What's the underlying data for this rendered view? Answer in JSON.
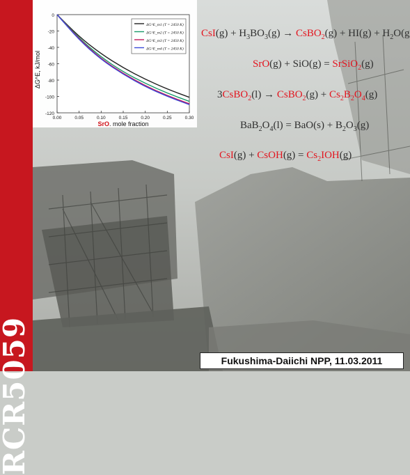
{
  "side_label": "RCR5059",
  "caption": "Fukushima-Daiichi NPP,  11.03.2011",
  "equations": [
    [
      {
        "t": "CsI",
        "c": "red"
      },
      {
        "t": "(g) + H"
      },
      {
        "t": "3",
        "sub": true
      },
      {
        "t": "BO"
      },
      {
        "t": "3",
        "sub": true
      },
      {
        "t": "(g) → "
      },
      {
        "t": "CsBO",
        "c": "red"
      },
      {
        "t": "2",
        "sub": true,
        "c": "red"
      },
      {
        "t": "(g) + HI(g) + H"
      },
      {
        "t": "2",
        "sub": true
      },
      {
        "t": "O(g)"
      }
    ],
    [
      {
        "t": "SrO",
        "c": "red"
      },
      {
        "t": "(g) + SiO(g) = "
      },
      {
        "t": "SrSiO",
        "c": "red"
      },
      {
        "t": "2",
        "sub": true,
        "c": "red"
      },
      {
        "t": "(g)"
      }
    ],
    [
      {
        "t": "3"
      },
      {
        "t": "CsBO",
        "c": "red"
      },
      {
        "t": "2",
        "sub": true,
        "c": "red"
      },
      {
        "t": "(l) → "
      },
      {
        "t": "CsBO",
        "c": "red"
      },
      {
        "t": "2",
        "sub": true,
        "c": "red"
      },
      {
        "t": "(g) + "
      },
      {
        "t": "Cs",
        "c": "red"
      },
      {
        "t": "2",
        "sub": true,
        "c": "red"
      },
      {
        "t": "B",
        "c": "red"
      },
      {
        "t": "2",
        "sub": true,
        "c": "red"
      },
      {
        "t": "O",
        "c": "red"
      },
      {
        "t": "4",
        "sub": true,
        "c": "red"
      },
      {
        "t": "(g)"
      }
    ],
    [
      {
        "t": "BaB"
      },
      {
        "t": "2",
        "sub": true
      },
      {
        "t": "O"
      },
      {
        "t": "4",
        "sub": true
      },
      {
        "t": "(l) = BaO(s) + B"
      },
      {
        "t": "2",
        "sub": true
      },
      {
        "t": "O"
      },
      {
        "t": "3",
        "sub": true
      },
      {
        "t": "(g)"
      }
    ],
    [
      {
        "t": "CsI",
        "c": "red"
      },
      {
        "t": "(g) + "
      },
      {
        "t": "CsOH",
        "c": "red"
      },
      {
        "t": "(g) = "
      },
      {
        "t": "Cs",
        "c": "red"
      },
      {
        "t": "2",
        "sub": true,
        "c": "red"
      },
      {
        "t": "IOH",
        "c": "red"
      },
      {
        "t": "(g)"
      }
    ]
  ],
  "colors": {
    "red": "#e3151f",
    "band": "#c7171f"
  },
  "chart_data": {
    "type": "line",
    "ylabel": "ΔG^E, kJ/mol",
    "xlabel_strong": "SrO",
    "xlabel_rest": ". mole fraction",
    "xlim": [
      0.0,
      0.3
    ],
    "ylim": [
      -120,
      0
    ],
    "x_ticks": [
      "0.00",
      "0.05",
      "0.10",
      "0.15",
      "0.20",
      "0.25",
      "0.30"
    ],
    "y_ticks": [
      "0",
      "-20",
      "-40",
      "-60",
      "-80",
      "-100",
      "-120"
    ],
    "x": [
      0.0,
      0.05,
      0.1,
      0.15,
      0.2,
      0.25,
      0.3
    ],
    "series": [
      {
        "name": "ΔG^E_m1 (T = 2450 K)",
        "color": "#222222",
        "values": [
          0,
          -27,
          -48,
          -65,
          -79,
          -91,
          -101
        ]
      },
      {
        "name": "ΔG^E_m2 (T = 2450 K)",
        "color": "#1a9a6a",
        "values": [
          0,
          -29,
          -52,
          -70,
          -84,
          -96,
          -106
        ]
      },
      {
        "name": "ΔG^E_m3 (T = 2450 K)",
        "color": "#c2185b",
        "values": [
          0,
          -30,
          -54,
          -72,
          -87,
          -99,
          -109
        ]
      },
      {
        "name": "ΔG^E_m4 (T = 2450 K)",
        "color": "#3b4bd8",
        "values": [
          0,
          -31,
          -55,
          -73,
          -88,
          -100,
          -110
        ]
      }
    ],
    "legend_position": "top-right"
  }
}
